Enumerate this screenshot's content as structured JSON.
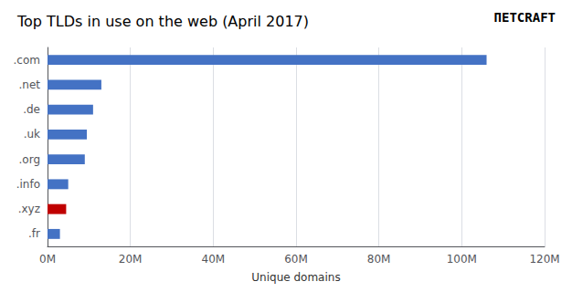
{
  "chart_data": {
    "type": "bar",
    "orientation": "horizontal",
    "title": "Top TLDs in use on the web (April 2017)",
    "annotations": [
      "ПETCRAFT"
    ],
    "xlabel": "Unique domains",
    "categories": [
      ".fr",
      ".xyz",
      ".info",
      ".org",
      ".uk",
      ".de",
      ".net",
      ".com"
    ],
    "values": [
      3.0,
      4.5,
      5.0,
      9.0,
      9.5,
      11.0,
      13.0,
      106.0
    ],
    "colors": [
      "#4472c4",
      "#c00000",
      "#4472c4",
      "#4472c4",
      "#4472c4",
      "#4472c4",
      "#4472c4",
      "#4472c4"
    ],
    "xlim": [
      0,
      120
    ],
    "xticks": [
      {
        "value": 0,
        "label": "0M"
      },
      {
        "value": 20,
        "label": "20M"
      },
      {
        "value": 40,
        "label": "40M"
      },
      {
        "value": 60,
        "label": "60M"
      },
      {
        "value": 80,
        "label": "80M"
      },
      {
        "value": 100,
        "label": "100M"
      },
      {
        "value": 120,
        "label": "120M"
      }
    ],
    "grid": true
  }
}
